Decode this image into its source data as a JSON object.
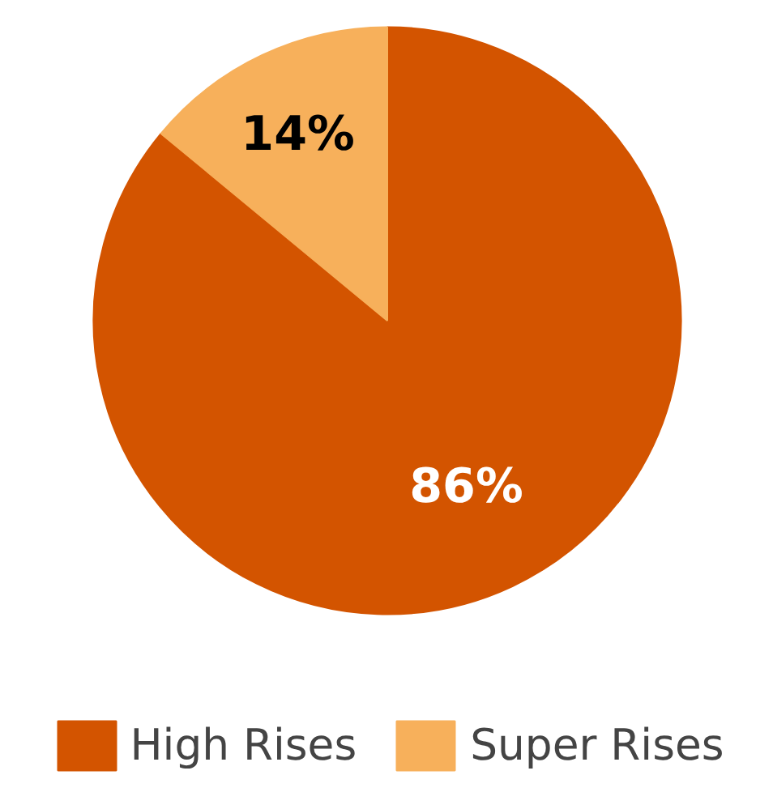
{
  "chart_data": {
    "type": "pie",
    "categories": [
      "High Rises",
      "Super Rises"
    ],
    "values": [
      86,
      14
    ],
    "colors": [
      "#d35400",
      "#f7b05b"
    ],
    "value_labels": [
      "86%",
      "14%"
    ],
    "legend": "bottom"
  }
}
